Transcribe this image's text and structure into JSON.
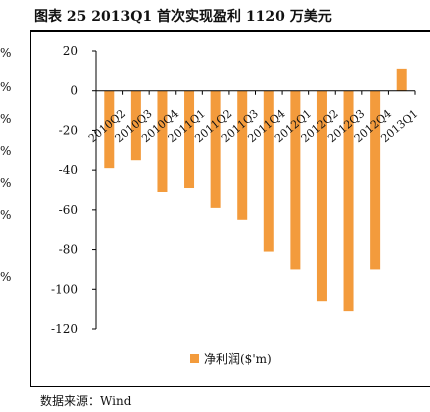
{
  "figure": {
    "title": "图表 25 2013Q1 首次实现盈利 1120 万美元",
    "source": "数据来源：Wind"
  },
  "left_strip": [
    "%",
    "%",
    "%",
    "%",
    "%",
    "%",
    "%"
  ],
  "colors": {
    "bar": "#F39B3C",
    "axis": "#000000"
  },
  "chart_data": {
    "type": "bar",
    "categories": [
      "2010Q2",
      "2010Q3",
      "2010Q4",
      "2011Q1",
      "2011Q2",
      "2011Q3",
      "2011Q4",
      "2012Q1",
      "2012Q2",
      "2012Q3",
      "2012Q4",
      "2013Q1"
    ],
    "series": [
      {
        "name": "净利润($'m)",
        "values": [
          -39,
          -35,
          -51,
          -49,
          -59,
          -65,
          -81,
          -90,
          -106,
          -111,
          -90,
          11
        ]
      }
    ],
    "ylim": [
      -120,
      20
    ],
    "yticks": [
      20,
      0,
      -20,
      -40,
      -60,
      -80,
      -100,
      -120
    ],
    "grid": false,
    "legend": "bottom-center"
  }
}
